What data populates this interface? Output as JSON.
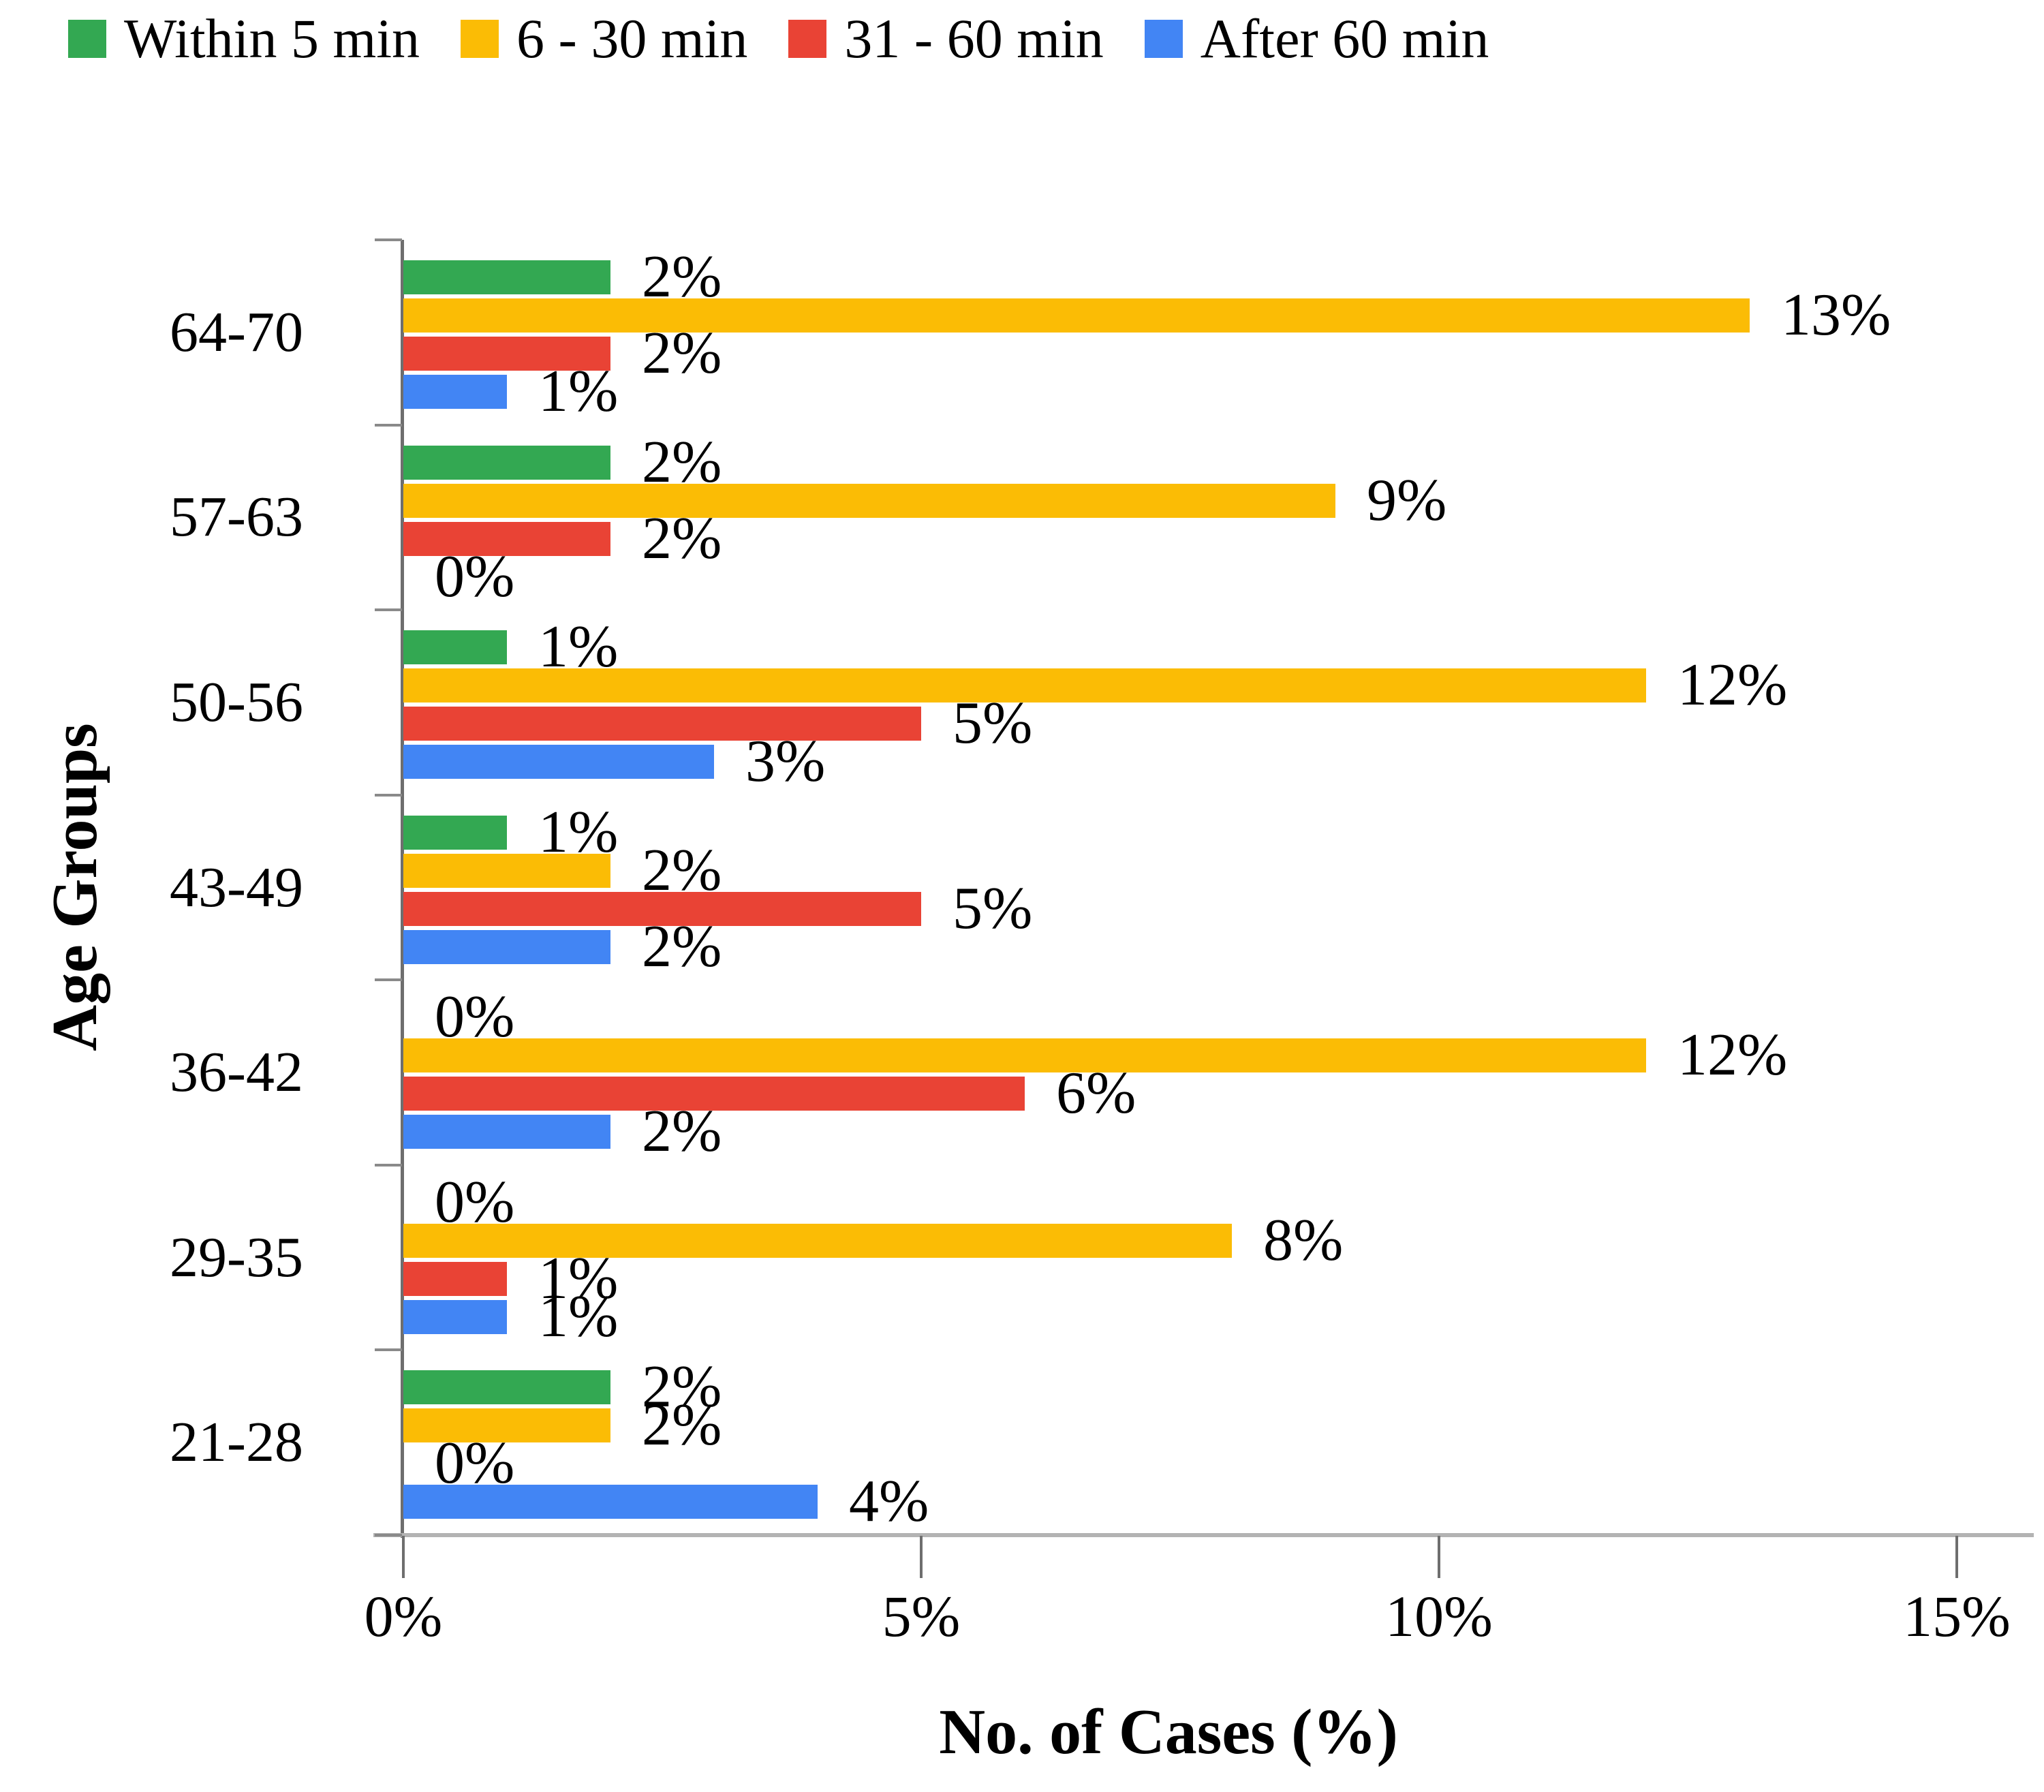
{
  "chart_data": {
    "type": "bar",
    "orientation": "horizontal",
    "title": "",
    "xlabel": "No. of Cases (%)",
    "ylabel": "Age Groups",
    "categories": [
      "64-70",
      "57-63",
      "50-56",
      "43-49",
      "36-42",
      "29-35",
      "21-28"
    ],
    "series": [
      {
        "name": "Within 5 min",
        "color": "#33A852",
        "values": [
          2,
          2,
          1,
          1,
          0,
          0,
          2
        ]
      },
      {
        "name": "6 - 30 min",
        "color": "#FBBC05",
        "values": [
          13,
          9,
          12,
          2,
          12,
          8,
          2
        ]
      },
      {
        "name": "31 - 60 min",
        "color": "#E94335",
        "values": [
          2,
          2,
          5,
          5,
          6,
          1,
          0
        ]
      },
      {
        "name": "After 60 min",
        "color": "#4285F4",
        "values": [
          1,
          0,
          3,
          2,
          2,
          1,
          4
        ]
      }
    ],
    "data_labels": [
      [
        "2%",
        "2%",
        "1%",
        "1%",
        "0%",
        "0%",
        "2%"
      ],
      [
        "13%",
        "9%",
        "12%",
        "2%",
        "12%",
        "8%",
        "2%"
      ],
      [
        "2%",
        "2%",
        "5%",
        "5%",
        "6%",
        "1%",
        "0%"
      ],
      [
        "1%",
        "0%",
        "3%",
        "2%",
        "2%",
        "1%",
        "4%"
      ]
    ],
    "x_ticks": [
      "0%",
      "5%",
      "10%",
      "15%"
    ],
    "x_tick_values": [
      0,
      5,
      10,
      15
    ],
    "xlim": [
      0,
      15
    ],
    "grid": false,
    "legend_position": "top",
    "background_color": "#ffffff",
    "text_color": "#000000"
  }
}
